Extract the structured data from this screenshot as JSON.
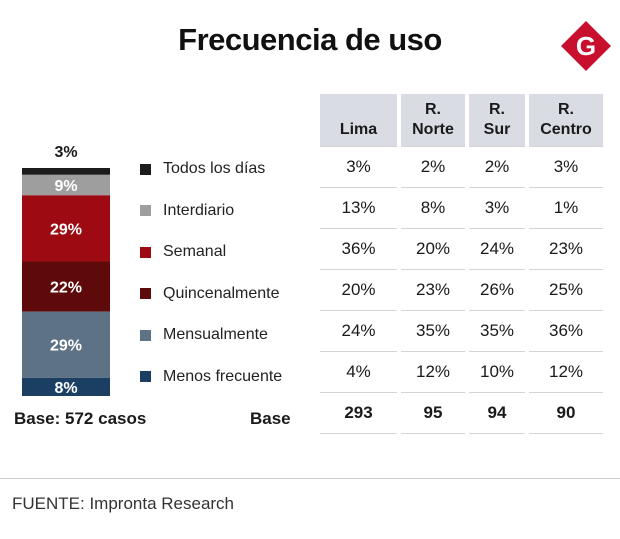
{
  "title": "Frecuencia de uso",
  "logo_letter": "G",
  "source": "FUENTE: Impronta Research",
  "base_left": "Base:  572 casos",
  "base_label": "Base",
  "columns": [
    "Lima",
    "R.\nNorte",
    "R.\nSur",
    "R.\nCentro"
  ],
  "chart_data": [
    {
      "type": "bar",
      "subtype": "stacked-100",
      "categories": [
        "Todos los días",
        "Interdiario",
        "Semanal",
        "Quincenalmente",
        "Mensualmente",
        "Menos frecuente"
      ],
      "series": [
        {
          "values": [
            3,
            9,
            29,
            22,
            29,
            8
          ]
        }
      ],
      "value_labels": [
        "3%",
        "9%",
        "29%",
        "22%",
        "29%",
        "8%"
      ],
      "colors": [
        "#1c1c1c",
        "#9e9e9e",
        "#9e0a12",
        "#5e0a0a",
        "#5e7286",
        "#1b3f63"
      ],
      "base": "Base:  572 casos"
    },
    {
      "type": "table",
      "columns": [
        "Lima",
        "R. Norte",
        "R. Sur",
        "R. Centro"
      ],
      "rows": [
        {
          "label": "Todos los días",
          "values": [
            "3%",
            "2%",
            "2%",
            "3%"
          ]
        },
        {
          "label": "Interdiario",
          "values": [
            "13%",
            "8%",
            "3%",
            "1%"
          ]
        },
        {
          "label": "Semanal",
          "values": [
            "36%",
            "20%",
            "24%",
            "23%"
          ]
        },
        {
          "label": "Quincenalmente",
          "values": [
            "20%",
            "23%",
            "26%",
            "25%"
          ]
        },
        {
          "label": "Mensualmente",
          "values": [
            "24%",
            "35%",
            "35%",
            "36%"
          ]
        },
        {
          "label": "Menos frecuente",
          "values": [
            "4%",
            "12%",
            "10%",
            "12%"
          ]
        }
      ],
      "base": {
        "label": "Base",
        "values": [
          "293",
          "95",
          "94",
          "90"
        ]
      }
    }
  ]
}
